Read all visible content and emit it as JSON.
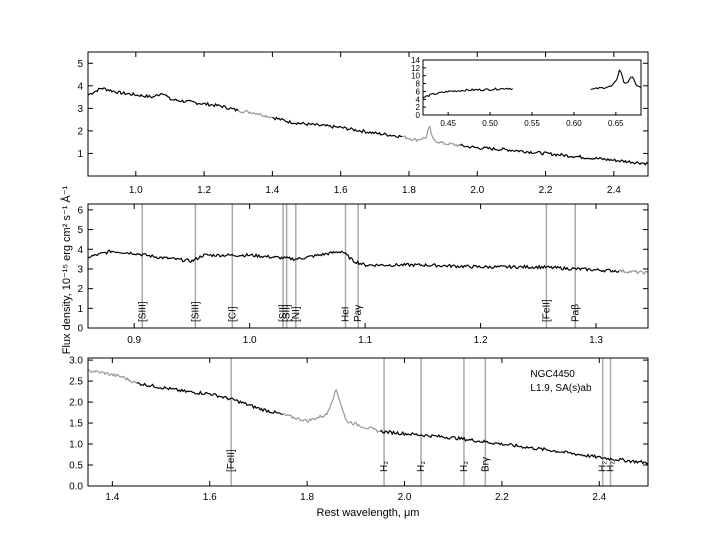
{
  "figure": {
    "ylabel": "Flux density, 10⁻¹⁵ erg  cm²  s⁻¹  Å⁻¹",
    "xlabel": "Rest wavelength, μm",
    "colors": {
      "spectrum": "#000000",
      "masked": "#999999",
      "lines": "#aaaaaa",
      "frame": "#000000"
    }
  },
  "chart_data": [
    {
      "type": "line",
      "panel": "top",
      "xlim": [
        0.86,
        2.5
      ],
      "ylim": [
        0,
        5.5
      ],
      "xticks": [
        "1.0",
        "1.2",
        "1.4",
        "1.6",
        "1.8",
        "2.0",
        "2.2",
        "2.4"
      ],
      "yticks": [
        "1",
        "2",
        "3",
        "4",
        "5"
      ],
      "series": [
        {
          "style": "black",
          "x": [
            0.86,
            0.9,
            0.95,
            1.0,
            1.05,
            1.08,
            1.1,
            1.2,
            1.25,
            1.3
          ],
          "y": [
            3.6,
            3.9,
            3.7,
            3.6,
            3.5,
            3.7,
            3.4,
            3.2,
            3.1,
            2.9
          ]
        },
        {
          "style": "gray",
          "x": [
            1.3,
            1.35,
            1.4
          ],
          "y": [
            2.9,
            2.8,
            2.6
          ]
        },
        {
          "style": "black",
          "x": [
            1.4,
            1.45,
            1.5,
            1.6,
            1.7,
            1.78
          ],
          "y": [
            2.6,
            2.4,
            2.3,
            2.15,
            1.9,
            1.75
          ]
        },
        {
          "style": "gray",
          "x": [
            1.78,
            1.82,
            1.85,
            1.86,
            1.87,
            1.9,
            1.95
          ],
          "y": [
            1.75,
            1.6,
            1.7,
            2.2,
            1.6,
            1.45,
            1.35
          ]
        },
        {
          "style": "black",
          "x": [
            1.95,
            2.0,
            2.1,
            2.2,
            2.3,
            2.4,
            2.5
          ],
          "y": [
            1.35,
            1.25,
            1.15,
            1.0,
            0.85,
            0.7,
            0.55
          ]
        }
      ],
      "inset": {
        "xlim": [
          0.42,
          0.68
        ],
        "ylim": [
          0,
          14
        ],
        "xticks": [
          "0.45",
          "0.50",
          "0.55",
          "0.60",
          "0.65"
        ],
        "yticks": [
          "0",
          "2",
          "4",
          "6",
          "8",
          "10",
          "12",
          "14"
        ],
        "series": [
          {
            "x": [
              0.42,
              0.43,
              0.45,
              0.47,
              0.5,
              0.52,
              0.527
            ],
            "y": [
              4.4,
              5.2,
              6.0,
              6.3,
              6.5,
              6.8,
              6.7
            ]
          },
          {
            "x": [
              0.62,
              0.63,
              0.645,
              0.65,
              0.655,
              0.66,
              0.665,
              0.67,
              0.675,
              0.68
            ],
            "y": [
              6.5,
              6.8,
              7.3,
              8.5,
              11.8,
              8.0,
              8.5,
              10.0,
              7.2,
              7.0
            ]
          }
        ]
      }
    },
    {
      "type": "line",
      "panel": "middle",
      "xlim": [
        0.86,
        1.345
      ],
      "ylim": [
        0,
        6.3
      ],
      "xticks": [
        "0.9",
        "1.0",
        "1.1",
        "1.2",
        "1.3"
      ],
      "yticks": [
        "0",
        "1",
        "2",
        "3",
        "4",
        "5",
        "6"
      ],
      "series": [
        {
          "style": "black",
          "x": [
            0.86,
            0.88,
            0.9,
            0.92,
            0.95,
            0.96,
            1.0,
            1.04,
            1.08,
            1.09,
            1.1,
            1.15,
            1.2,
            1.25,
            1.3,
            1.32
          ],
          "y": [
            3.6,
            3.9,
            3.8,
            3.6,
            3.4,
            3.7,
            3.7,
            3.5,
            3.9,
            3.4,
            3.2,
            3.2,
            3.1,
            3.1,
            2.95,
            2.9
          ]
        },
        {
          "style": "gray",
          "x": [
            1.32,
            1.345
          ],
          "y": [
            2.9,
            2.8
          ]
        }
      ],
      "lines": [
        {
          "x": 0.907,
          "label": "[SIII]"
        },
        {
          "x": 0.953,
          "label": "[SIII]"
        },
        {
          "x": 0.985,
          "label": "[CI]"
        },
        {
          "x": 1.029,
          "label": "[SII]"
        },
        {
          "x": 1.032,
          "label": "[SII]"
        },
        {
          "x": 1.04,
          "label": "[NI]"
        },
        {
          "x": 1.083,
          "label": "HeI"
        },
        {
          "x": 1.094,
          "label": "Paγ"
        },
        {
          "x": 1.257,
          "label": "[FeII]"
        },
        {
          "x": 1.282,
          "label": "Paβ"
        }
      ]
    },
    {
      "type": "line",
      "panel": "bottom",
      "xlim": [
        1.35,
        2.5
      ],
      "ylim": [
        0,
        3.05
      ],
      "xticks": [
        "1.4",
        "1.6",
        "1.8",
        "2.0",
        "2.2",
        "2.4"
      ],
      "yticks": [
        "0.0",
        "0.5",
        "1.0",
        "1.5",
        "2.0",
        "2.5",
        "3.0"
      ],
      "series": [
        {
          "style": "gray",
          "x": [
            1.35,
            1.38,
            1.42,
            1.45
          ],
          "y": [
            2.75,
            2.7,
            2.6,
            2.45
          ]
        },
        {
          "style": "black",
          "x": [
            1.45,
            1.5,
            1.55,
            1.6,
            1.65,
            1.7,
            1.75
          ],
          "y": [
            2.45,
            2.35,
            2.25,
            2.2,
            2.05,
            1.85,
            1.7
          ]
        },
        {
          "style": "gray",
          "x": [
            1.75,
            1.8,
            1.84,
            1.86,
            1.88,
            1.92,
            1.95
          ],
          "y": [
            1.7,
            1.55,
            1.7,
            2.3,
            1.55,
            1.4,
            1.3
          ]
        },
        {
          "style": "black",
          "x": [
            1.95,
            2.0,
            2.05,
            2.1,
            2.2,
            2.3,
            2.4,
            2.5
          ],
          "y": [
            1.3,
            1.25,
            1.2,
            1.15,
            1.0,
            0.85,
            0.68,
            0.55
          ]
        }
      ],
      "lines": [
        {
          "x": 1.644,
          "label": "[FeII]"
        },
        {
          "x": 1.958,
          "label": "H₂"
        },
        {
          "x": 2.034,
          "label": "H₂"
        },
        {
          "x": 2.122,
          "label": "H₂"
        },
        {
          "x": 2.166,
          "label": "Brγ"
        },
        {
          "x": 2.407,
          "label": "H₂"
        },
        {
          "x": 2.423,
          "label": "H₂"
        }
      ],
      "annotations": [
        "NGC4450",
        "L1.9,  SA(s)ab"
      ]
    }
  ]
}
